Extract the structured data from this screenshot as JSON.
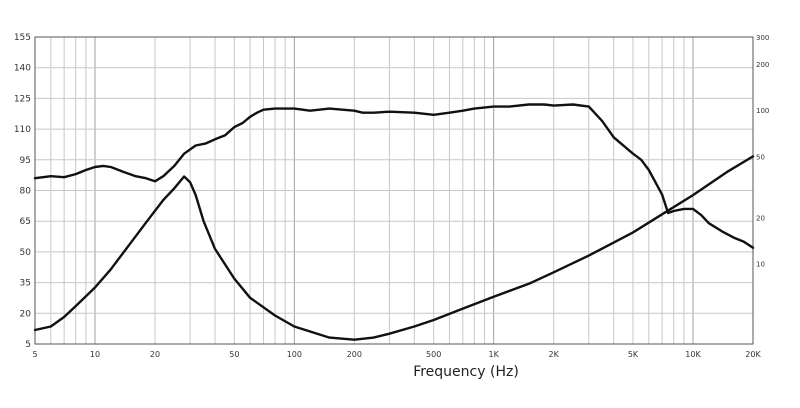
{
  "chart_data": {
    "type": "line",
    "title": "",
    "xlabel": "Frequency (Hz)",
    "x_scale": "log",
    "xlim": [
      5,
      20000
    ],
    "x_ticks": [
      {
        "value": 5,
        "label": "5"
      },
      {
        "value": 10,
        "label": "10"
      },
      {
        "value": 20,
        "label": "20"
      },
      {
        "value": 50,
        "label": "50"
      },
      {
        "value": 100,
        "label": "100"
      },
      {
        "value": 200,
        "label": "200"
      },
      {
        "value": 500,
        "label": "500"
      },
      {
        "value": 1000,
        "label": "1K"
      },
      {
        "value": 2000,
        "label": "2K"
      },
      {
        "value": 5000,
        "label": "5K"
      },
      {
        "value": 10000,
        "label": "10K"
      },
      {
        "value": 20000,
        "label": "20K"
      }
    ],
    "left_axis": {
      "ylim": [
        5,
        155
      ],
      "ticks": [
        "5",
        "20",
        "35",
        "50",
        "65",
        "80",
        "95",
        "110",
        "125",
        "140",
        "155"
      ]
    },
    "right_axis": {
      "scale": "log",
      "ylim": [
        3,
        300
      ],
      "ticks": [
        {
          "value": 10,
          "label": "10"
        },
        {
          "value": 20,
          "label": "20"
        },
        {
          "value": 50,
          "label": "50"
        },
        {
          "value": 100,
          "label": "100"
        },
        {
          "value": 200,
          "label": "200"
        },
        {
          "value": 300,
          "label": "300"
        }
      ]
    },
    "grid": true,
    "series": [
      {
        "axis": "left",
        "points": [
          [
            5,
            86
          ],
          [
            6,
            87
          ],
          [
            7,
            86.5
          ],
          [
            8,
            88
          ],
          [
            9,
            90
          ],
          [
            10,
            91.5
          ],
          [
            11,
            92
          ],
          [
            12,
            91.5
          ],
          [
            14,
            89
          ],
          [
            16,
            87
          ],
          [
            18,
            86
          ],
          [
            20,
            84.5
          ],
          [
            22,
            87
          ],
          [
            25,
            92
          ],
          [
            28,
            98
          ],
          [
            32,
            102
          ],
          [
            36,
            103
          ],
          [
            40,
            105
          ],
          [
            45,
            107
          ],
          [
            50,
            111
          ],
          [
            55,
            113
          ],
          [
            60,
            116
          ],
          [
            65,
            118
          ],
          [
            70,
            119.5
          ],
          [
            80,
            120
          ],
          [
            100,
            120
          ],
          [
            120,
            119
          ],
          [
            150,
            120
          ],
          [
            200,
            119
          ],
          [
            220,
            118
          ],
          [
            250,
            118
          ],
          [
            300,
            118.5
          ],
          [
            400,
            118
          ],
          [
            500,
            117
          ],
          [
            600,
            118
          ],
          [
            700,
            119
          ],
          [
            800,
            120
          ],
          [
            1000,
            121
          ],
          [
            1200,
            121
          ],
          [
            1500,
            122
          ],
          [
            1800,
            122
          ],
          [
            2000,
            121.5
          ],
          [
            2500,
            122
          ],
          [
            3000,
            121
          ],
          [
            3500,
            114
          ],
          [
            4000,
            106
          ],
          [
            5000,
            98
          ],
          [
            5500,
            95
          ],
          [
            6000,
            90
          ],
          [
            7000,
            78
          ],
          [
            7500,
            69
          ],
          [
            8000,
            70
          ],
          [
            9000,
            71
          ],
          [
            10000,
            71
          ],
          [
            11000,
            68
          ],
          [
            12000,
            64
          ],
          [
            14000,
            60
          ],
          [
            16000,
            57
          ],
          [
            18000,
            55
          ],
          [
            20000,
            52
          ]
        ]
      },
      {
        "axis": "right",
        "points": [
          [
            5,
            3.7
          ],
          [
            6,
            3.9
          ],
          [
            7,
            4.5
          ],
          [
            8,
            5.3
          ],
          [
            10,
            7
          ],
          [
            12,
            9.2
          ],
          [
            15,
            13.5
          ],
          [
            18,
            18.5
          ],
          [
            22,
            26
          ],
          [
            25,
            31
          ],
          [
            28,
            37
          ],
          [
            30,
            34
          ],
          [
            32,
            28
          ],
          [
            35,
            19
          ],
          [
            40,
            12.5
          ],
          [
            50,
            8
          ],
          [
            60,
            6
          ],
          [
            80,
            4.6
          ],
          [
            100,
            3.9
          ],
          [
            150,
            3.3
          ],
          [
            200,
            3.2
          ],
          [
            250,
            3.3
          ],
          [
            300,
            3.5
          ],
          [
            400,
            3.9
          ],
          [
            500,
            4.3
          ],
          [
            700,
            5.1
          ],
          [
            1000,
            6.1
          ],
          [
            1500,
            7.4
          ],
          [
            2000,
            8.8
          ],
          [
            3000,
            11.3
          ],
          [
            5000,
            16
          ],
          [
            7000,
            21
          ],
          [
            10000,
            28
          ],
          [
            15000,
            40
          ],
          [
            20000,
            50
          ]
        ]
      }
    ]
  }
}
